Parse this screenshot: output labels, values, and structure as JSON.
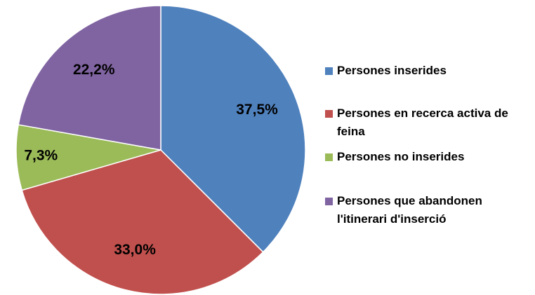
{
  "chart_data": {
    "type": "pie",
    "categories": [
      "Persones inserides",
      "Persones en recerca activa de feina",
      "Persones no inserides",
      "Persones que abandonen l'itinerari d'inserció"
    ],
    "values": [
      37.5,
      33.0,
      7.3,
      22.2
    ],
    "value_labels": [
      "37,5%",
      "33,0%",
      "7,3%",
      "22,2%"
    ],
    "colors": [
      "#4f81bd",
      "#c0504d",
      "#9bbb59",
      "#8064a2"
    ],
    "legend": "right"
  }
}
